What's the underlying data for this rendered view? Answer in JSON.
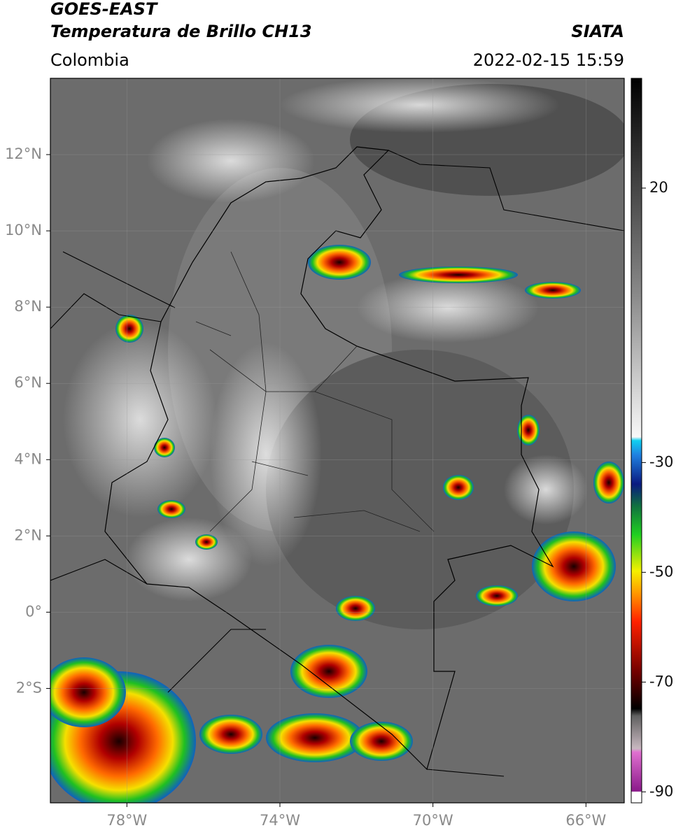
{
  "header": {
    "title": "GOES-EAST",
    "subtitle": "Temperatura de Brillo CH13",
    "source": "SIATA",
    "region": "Colombia",
    "datetime": "2022-02-15 15:59"
  },
  "map": {
    "xlim": [
      -80,
      -65
    ],
    "ylim": [
      -5,
      14
    ],
    "xticks": [
      {
        "value": -78,
        "label": "78°W"
      },
      {
        "value": -74,
        "label": "74°W"
      },
      {
        "value": -70,
        "label": "70°W"
      },
      {
        "value": -66,
        "label": "66°W"
      }
    ],
    "yticks": [
      {
        "value": 12,
        "label": "12°N"
      },
      {
        "value": 10,
        "label": "10°N"
      },
      {
        "value": 8,
        "label": "8°N"
      },
      {
        "value": 6,
        "label": "6°N"
      },
      {
        "value": 4,
        "label": "4°N"
      },
      {
        "value": 2,
        "label": "2°N"
      },
      {
        "value": 0,
        "label": "0°"
      },
      {
        "value": -2,
        "label": "2°S"
      }
    ],
    "grid": true
  },
  "colorbar": {
    "lim": [
      -92,
      40
    ],
    "ticks": [
      20,
      -30,
      -50,
      -70,
      -90
    ]
  }
}
